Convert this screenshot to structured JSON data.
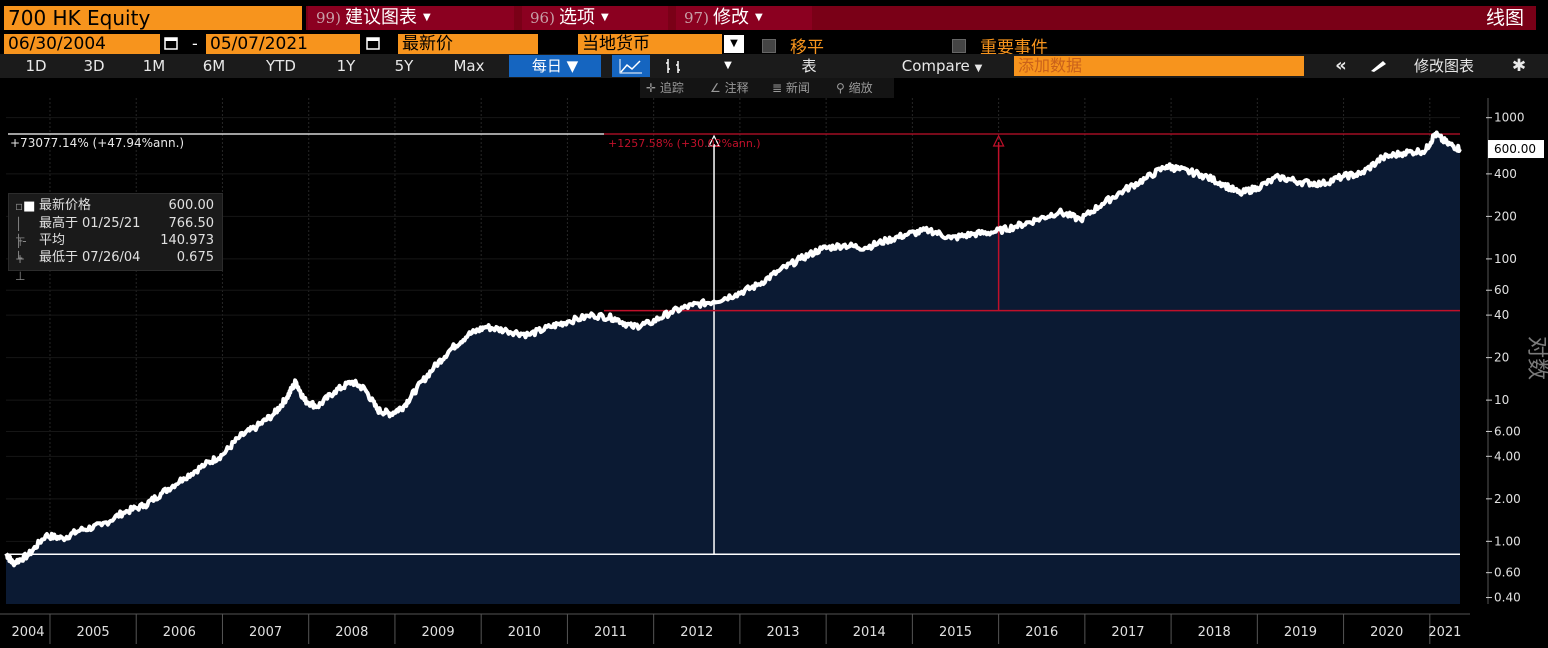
{
  "header": {
    "ticker": "700 HK Equity",
    "menus": [
      {
        "num": "99)",
        "label": "建议图表"
      },
      {
        "num": "96)",
        "label": "选项"
      },
      {
        "num": "97)",
        "label": "修改"
      }
    ],
    "chart_type": "线图"
  },
  "params": {
    "start_date": "06/30/2004",
    "dash": "-",
    "end_date": "05/07/2021",
    "price_field": "最新价",
    "currency": "当地货币",
    "shift_label": "移平",
    "events_label": "重要事件"
  },
  "toolbar": {
    "ranges": [
      "1D",
      "3D",
      "1M",
      "6M",
      "YTD",
      "1Y",
      "5Y",
      "Max"
    ],
    "frequency": "每日",
    "table_label": "表",
    "compare_label": "Compare",
    "add_data_placeholder": "添加数据",
    "edit_chart_label": "修改图表",
    "collapse_icon": "double-chevron-left-icon",
    "settings_icon": "gear-icon"
  },
  "small_tools": {
    "track": "追踪",
    "annotate": "注释",
    "news": "新闻",
    "zoom": "缩放"
  },
  "legend": {
    "last_label": "最新价格",
    "last_value": "600.00",
    "high_label": "最高于",
    "high_date": "01/25/21",
    "high_value": "766.50",
    "avg_label": "平均",
    "avg_value": "140.973",
    "low_label": "最低于",
    "low_date": "07/26/04",
    "low_value": "0.675"
  },
  "annotations": {
    "total_return": "+73077.14% (+47.94%ann.)",
    "measure_return": "+1257.58% (+30.02%ann.)",
    "last_price_tag": "600.00",
    "axis_title": "对数"
  },
  "colors": {
    "background": "#000000",
    "fill": "#0b1a33",
    "line": "#ffffff",
    "measure": "#c0102a",
    "accent": "#f7941d",
    "menu": "#8b0020"
  },
  "chart_data": {
    "type": "area",
    "scale": "log",
    "title": "",
    "xlabel": "",
    "ylabel": "对数",
    "ylim": [
      0.36,
      1250
    ],
    "y_ticks": [
      0.4,
      0.6,
      1.0,
      2.0,
      4.0,
      6.0,
      10,
      20,
      40,
      60,
      100,
      200,
      400,
      1000
    ],
    "y_tick_labels": [
      "0.40",
      "0.60",
      "1.00",
      "2.00",
      "4.00",
      "6.00",
      "10",
      "20",
      "40",
      "60",
      "100",
      "200",
      "400",
      "1000"
    ],
    "x_labels": [
      "2004",
      "2005",
      "2006",
      "2007",
      "2008",
      "2009",
      "2010",
      "2011",
      "2012",
      "2013",
      "2014",
      "2015",
      "2016",
      "2017",
      "2018",
      "2019",
      "2020",
      "2021"
    ],
    "x_range": [
      2004.49,
      2021.35
    ],
    "series": [
      {
        "values": [
          [
            2004.49,
            0.82
          ],
          [
            2004.57,
            0.7
          ],
          [
            2004.75,
            0.8
          ],
          [
            2004.95,
            1.1
          ],
          [
            2005.15,
            1.05
          ],
          [
            2005.35,
            1.2
          ],
          [
            2005.6,
            1.3
          ],
          [
            2005.85,
            1.6
          ],
          [
            2006.1,
            1.8
          ],
          [
            2006.3,
            2.2
          ],
          [
            2006.55,
            2.8
          ],
          [
            2006.8,
            3.5
          ],
          [
            2007.0,
            4.1
          ],
          [
            2007.2,
            5.5
          ],
          [
            2007.4,
            6.5
          ],
          [
            2007.6,
            8.0
          ],
          [
            2007.75,
            10.5
          ],
          [
            2007.85,
            13.5
          ],
          [
            2007.95,
            10.0
          ],
          [
            2008.1,
            9.0
          ],
          [
            2008.3,
            11.5
          ],
          [
            2008.5,
            13.5
          ],
          [
            2008.65,
            12.0
          ],
          [
            2008.8,
            8.5
          ],
          [
            2008.95,
            8.0
          ],
          [
            2009.1,
            9.0
          ],
          [
            2009.25,
            12.0
          ],
          [
            2009.45,
            17.0
          ],
          [
            2009.65,
            23.0
          ],
          [
            2009.85,
            29.0
          ],
          [
            2010.05,
            33.0
          ],
          [
            2010.3,
            31.0
          ],
          [
            2010.55,
            29.0
          ],
          [
            2010.8,
            33.0
          ],
          [
            2011.0,
            36.0
          ],
          [
            2011.3,
            40.0
          ],
          [
            2011.55,
            38.0
          ],
          [
            2011.75,
            33.0
          ],
          [
            2011.95,
            35.0
          ],
          [
            2012.2,
            42.0
          ],
          [
            2012.45,
            47.0
          ],
          [
            2012.7,
            50.0
          ],
          [
            2012.95,
            56.0
          ],
          [
            2013.2,
            65.0
          ],
          [
            2013.45,
            82.0
          ],
          [
            2013.7,
            100.0
          ],
          [
            2013.95,
            118.0
          ],
          [
            2014.2,
            125.0
          ],
          [
            2014.45,
            120.0
          ],
          [
            2014.7,
            135.0
          ],
          [
            2014.95,
            150.0
          ],
          [
            2015.2,
            160.0
          ],
          [
            2015.45,
            140.0
          ],
          [
            2015.7,
            150.0
          ],
          [
            2015.95,
            155.0
          ],
          [
            2016.2,
            170.0
          ],
          [
            2016.45,
            190.0
          ],
          [
            2016.7,
            215.0
          ],
          [
            2016.95,
            190.0
          ],
          [
            2017.2,
            245.0
          ],
          [
            2017.45,
            305.0
          ],
          [
            2017.7,
            370.0
          ],
          [
            2017.95,
            455.0
          ],
          [
            2018.1,
            430.0
          ],
          [
            2018.35,
            395.0
          ],
          [
            2018.6,
            340.0
          ],
          [
            2018.8,
            290.0
          ],
          [
            2019.0,
            320.0
          ],
          [
            2019.25,
            380.0
          ],
          [
            2019.5,
            350.0
          ],
          [
            2019.75,
            340.0
          ],
          [
            2020.0,
            385.0
          ],
          [
            2020.2,
            400.0
          ],
          [
            2020.45,
            520.0
          ],
          [
            2020.7,
            565.0
          ],
          [
            2020.95,
            585.0
          ],
          [
            2021.06,
            766.5
          ],
          [
            2021.2,
            660.0
          ],
          [
            2021.35,
            600.0
          ]
        ]
      }
    ],
    "reference_lines": {
      "low_level": 0.81,
      "measure_level": 43.0,
      "measure_top": 620.0,
      "measure_start_x": 2012.7,
      "measure_end_x": 2016.0
    }
  }
}
